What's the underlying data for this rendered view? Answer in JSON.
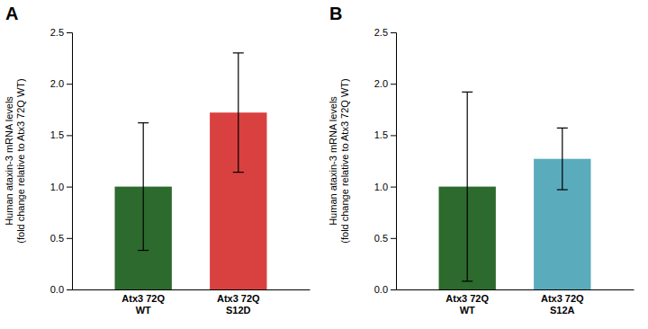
{
  "chart_data": [
    {
      "type": "bar",
      "title": "A",
      "categories": [
        "Atx3 72Q\nWT",
        "Atx3 72Q\nS12D"
      ],
      "values": [
        1.0,
        1.72
      ],
      "errors": [
        0.62,
        0.58
      ],
      "colors": [
        "#2d6a2d",
        "#d94040"
      ],
      "ylim": [
        0,
        2.5
      ],
      "yticks": [
        {
          "value": 0,
          "label": "0.0"
        },
        0.5,
        {
          "value": 1,
          "label": "1.0"
        },
        1.5,
        {
          "value": 2,
          "label": "2.0"
        },
        2.5
      ],
      "ylabel": "Human ataxin-3 mRNA levels\n(fold change relative to Atx3 72Q WT)",
      "grid": false
    },
    {
      "type": "bar",
      "title": "B",
      "categories": [
        "Atx3 72Q\nWT",
        "Atx3 72Q\nS12A"
      ],
      "values": [
        1.0,
        1.27
      ],
      "errors": [
        0.92,
        0.3
      ],
      "colors": [
        "#2d6a2d",
        "#5aabbc"
      ],
      "ylim": [
        0,
        2.5
      ],
      "yticks": [
        {
          "value": 0,
          "label": "0.0"
        },
        0.5,
        {
          "value": 1,
          "label": "1.0"
        },
        1.5,
        {
          "value": 2,
          "label": "2.0"
        },
        2.5
      ],
      "ylabel": "Human ataxin-3 mRNA levels\n(fold change relative to Atx3 72Q WT)",
      "grid": false
    }
  ]
}
